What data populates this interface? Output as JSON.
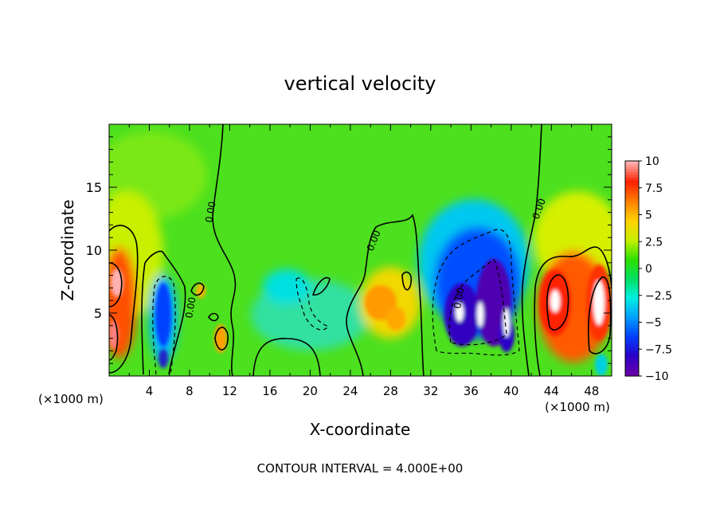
{
  "chart_data": {
    "type": "heatmap",
    "title": "vertical velocity",
    "xlabel": "X-coordinate",
    "ylabel": "Z-coordinate",
    "x_unit_left": "(×1000 m)",
    "x_unit_right": "(×1000 m)",
    "xlim": [
      0,
      50
    ],
    "ylim": [
      0,
      20
    ],
    "xticks": [
      4,
      8,
      12,
      16,
      20,
      24,
      28,
      32,
      36,
      40,
      44,
      48
    ],
    "yticks": [
      5,
      10,
      15
    ],
    "footer": "CONTOUR INTERVAL = 4.000E+00",
    "contour_labels": [
      "0.00",
      "0.00",
      "0.00",
      "0.00",
      "0.00",
      "0.00"
    ],
    "colorbar": {
      "range": [
        -10,
        10
      ],
      "ticks": [
        10,
        7.5,
        5,
        2.5,
        0,
        -2.5,
        -5,
        -7.5,
        -10
      ],
      "tick_labels": [
        "10",
        "7.5",
        "5",
        "2.5",
        "0",
        "−2.5",
        "−5",
        "−7.5",
        "−10"
      ],
      "colors": [
        "#6a00a8",
        "#2a00c8",
        "#0040ff",
        "#00a0ff",
        "#00f0e0",
        "#00e060",
        "#30e000",
        "#c8f000",
        "#ffd000",
        "#ff8000",
        "#ff2000",
        "#ffb0b0"
      ]
    },
    "features": [
      {
        "x": 0.8,
        "z": 7.0,
        "value": 9.5
      },
      {
        "x": 0.5,
        "z": 3.5,
        "value": 8.5
      },
      {
        "x": 2.0,
        "z": 10.0,
        "value": 4.0
      },
      {
        "x": 5.3,
        "z": 5.0,
        "value": -6.0
      },
      {
        "x": 5.5,
        "z": 1.5,
        "value": -8.0
      },
      {
        "x": 8.0,
        "z": 6.5,
        "value": 3.0
      },
      {
        "x": 10.5,
        "z": 3.5,
        "value": 4.5
      },
      {
        "x": 15.0,
        "z": 17.0,
        "value": 1.0
      },
      {
        "x": 18.0,
        "z": 6.5,
        "value": -2.5
      },
      {
        "x": 21.0,
        "z": 4.0,
        "value": -2.0
      },
      {
        "x": 27.5,
        "z": 5.5,
        "value": 5.0
      },
      {
        "x": 29.0,
        "z": 4.0,
        "value": 4.0
      },
      {
        "x": 30.0,
        "z": 8.0,
        "value": 2.5
      },
      {
        "x": 36.0,
        "z": 9.5,
        "value": -5.0
      },
      {
        "x": 36.5,
        "z": 6.5,
        "value": -9.0
      },
      {
        "x": 34.0,
        "z": 5.5,
        "value": -11.0
      },
      {
        "x": 38.5,
        "z": 4.5,
        "value": -11.0
      },
      {
        "x": 39.5,
        "z": 3.0,
        "value": -9.0
      },
      {
        "x": 44.5,
        "z": 6.0,
        "value": 10.5
      },
      {
        "x": 48.0,
        "z": 5.0,
        "value": 10.5
      },
      {
        "x": 46.5,
        "z": 9.0,
        "value": 3.0
      },
      {
        "x": 48.5,
        "z": 2.0,
        "value": -3.0
      }
    ]
  }
}
